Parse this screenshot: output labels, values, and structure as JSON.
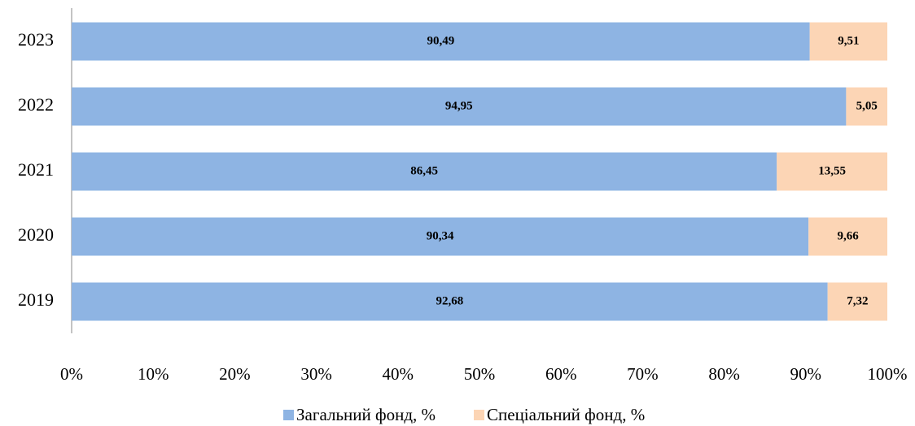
{
  "chart_data": {
    "type": "bar",
    "orientation": "horizontal",
    "stacked": true,
    "categories": [
      "2023",
      "2022",
      "2021",
      "2020",
      "2019"
    ],
    "series": [
      {
        "name": "Загальний фонд, %",
        "color": "#8eb4e3",
        "values": [
          90.49,
          94.95,
          86.45,
          90.34,
          92.68
        ],
        "value_labels": [
          "90,49",
          "94,95",
          "86,45",
          "90,34",
          "92,68"
        ]
      },
      {
        "name": "Спеціальний фонд, %",
        "color": "#fcd5b5",
        "values": [
          9.51,
          5.05,
          13.55,
          9.66,
          7.32
        ],
        "value_labels": [
          "9,51",
          "5,05",
          "13,55",
          "9,66",
          "7,32"
        ]
      }
    ],
    "xlim": [
      0,
      100
    ],
    "xticks": [
      {
        "value": 0,
        "label": "0%"
      },
      {
        "value": 10,
        "label": "10%"
      },
      {
        "value": 20,
        "label": "20%"
      },
      {
        "value": 30,
        "label": "30%"
      },
      {
        "value": 40,
        "label": "40%"
      },
      {
        "value": 50,
        "label": "50%"
      },
      {
        "value": 60,
        "label": "60%"
      },
      {
        "value": 70,
        "label": "70%"
      },
      {
        "value": 80,
        "label": "80%"
      },
      {
        "value": 90,
        "label": "90%"
      },
      {
        "value": 100,
        "label": "100%"
      }
    ],
    "legend": "bottom"
  }
}
